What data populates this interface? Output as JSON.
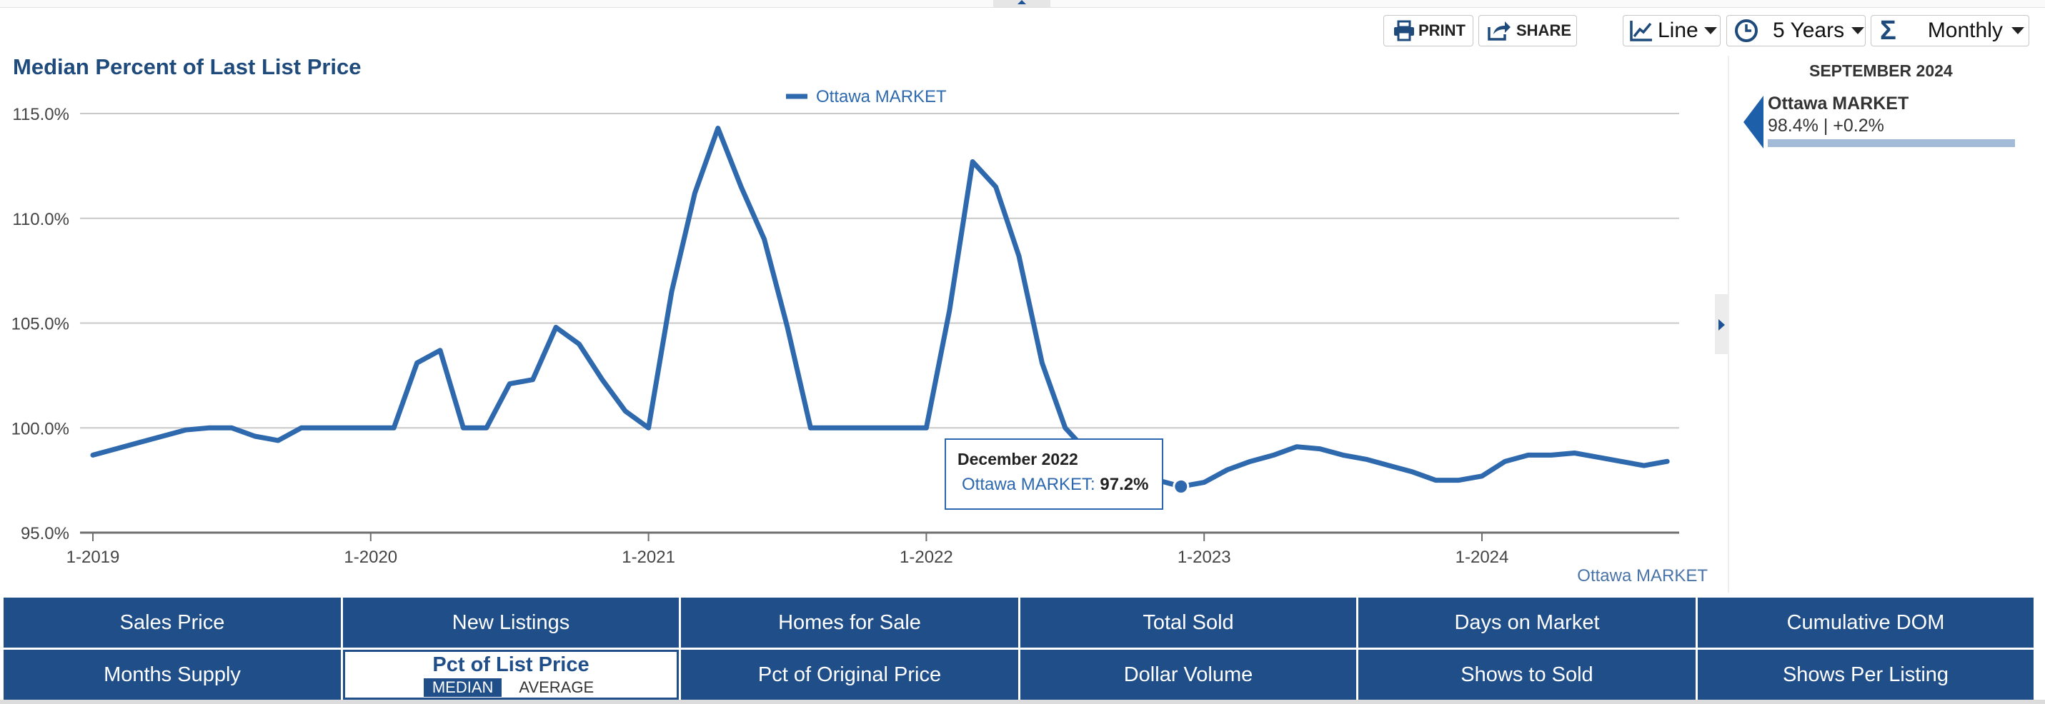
{
  "toolbar": {
    "print_label": "PRINT",
    "share_label": "SHARE",
    "chart_type_label": "Line",
    "period_label": "5 Years",
    "interval_label": "Monthly"
  },
  "chart_title": "Median Percent of Last List Price",
  "legend_label": "Ottawa MARKET",
  "source_label": "Ottawa MARKET",
  "tooltip": {
    "date": "December 2022",
    "series": "Ottawa MARKET:",
    "value": "97.2%"
  },
  "side_panel": {
    "month": "SEPTEMBER 2024",
    "series": "Ottawa MARKET",
    "value": "98.4% | +0.2%"
  },
  "colors": {
    "line": "#2f69ad",
    "title": "#1f4a7c",
    "tab_bg": "#1f4e89"
  },
  "tabs": {
    "row1": [
      "Sales Price",
      "New Listings",
      "Homes for Sale",
      "Total Sold",
      "Days on Market",
      "Cumulative DOM"
    ],
    "row2": [
      "Months Supply",
      "Pct of List Price",
      "Pct of Original Price",
      "Dollar Volume",
      "Shows to Sold",
      "Shows Per Listing"
    ],
    "active": "Pct of List Price",
    "active_options": [
      "MEDIAN",
      "AVERAGE"
    ]
  },
  "chart_data": {
    "type": "line",
    "title": "Median Percent of Last List Price",
    "xlabel": "",
    "ylabel": "",
    "y_ticks": [
      "115.0%",
      "110.0%",
      "105.0%",
      "100.0%",
      "95.0%"
    ],
    "x_ticks": [
      "1-2019",
      "1-2020",
      "1-2021",
      "1-2022",
      "1-2023",
      "1-2024"
    ],
    "ylim": [
      95,
      115
    ],
    "x_start": "2019-01",
    "grid": true,
    "legend_position": "top",
    "series": [
      {
        "name": "Ottawa MARKET",
        "values": [
          98.7,
          99.0,
          99.3,
          99.6,
          99.9,
          100.0,
          100.0,
          99.6,
          99.4,
          100.0,
          100.0,
          100.0,
          100.0,
          100.0,
          103.1,
          103.7,
          100.0,
          100.0,
          102.1,
          102.3,
          104.8,
          104.0,
          102.3,
          100.8,
          100.0,
          106.5,
          111.2,
          114.3,
          111.5,
          109.0,
          104.8,
          100.0,
          100.0,
          100.0,
          100.0,
          100.0,
          100.0,
          105.6,
          112.7,
          111.5,
          108.2,
          103.1,
          100.0,
          98.8,
          98.0,
          97.9,
          97.5,
          97.2,
          97.4,
          98.0,
          98.4,
          98.7,
          99.1,
          99.0,
          98.7,
          98.5,
          98.2,
          97.9,
          97.5,
          97.5,
          97.7,
          98.4,
          98.7,
          98.7,
          98.8,
          98.6,
          98.4,
          98.2,
          98.4
        ]
      }
    ],
    "highlight": {
      "label": "December 2022",
      "value": 97.2
    }
  }
}
